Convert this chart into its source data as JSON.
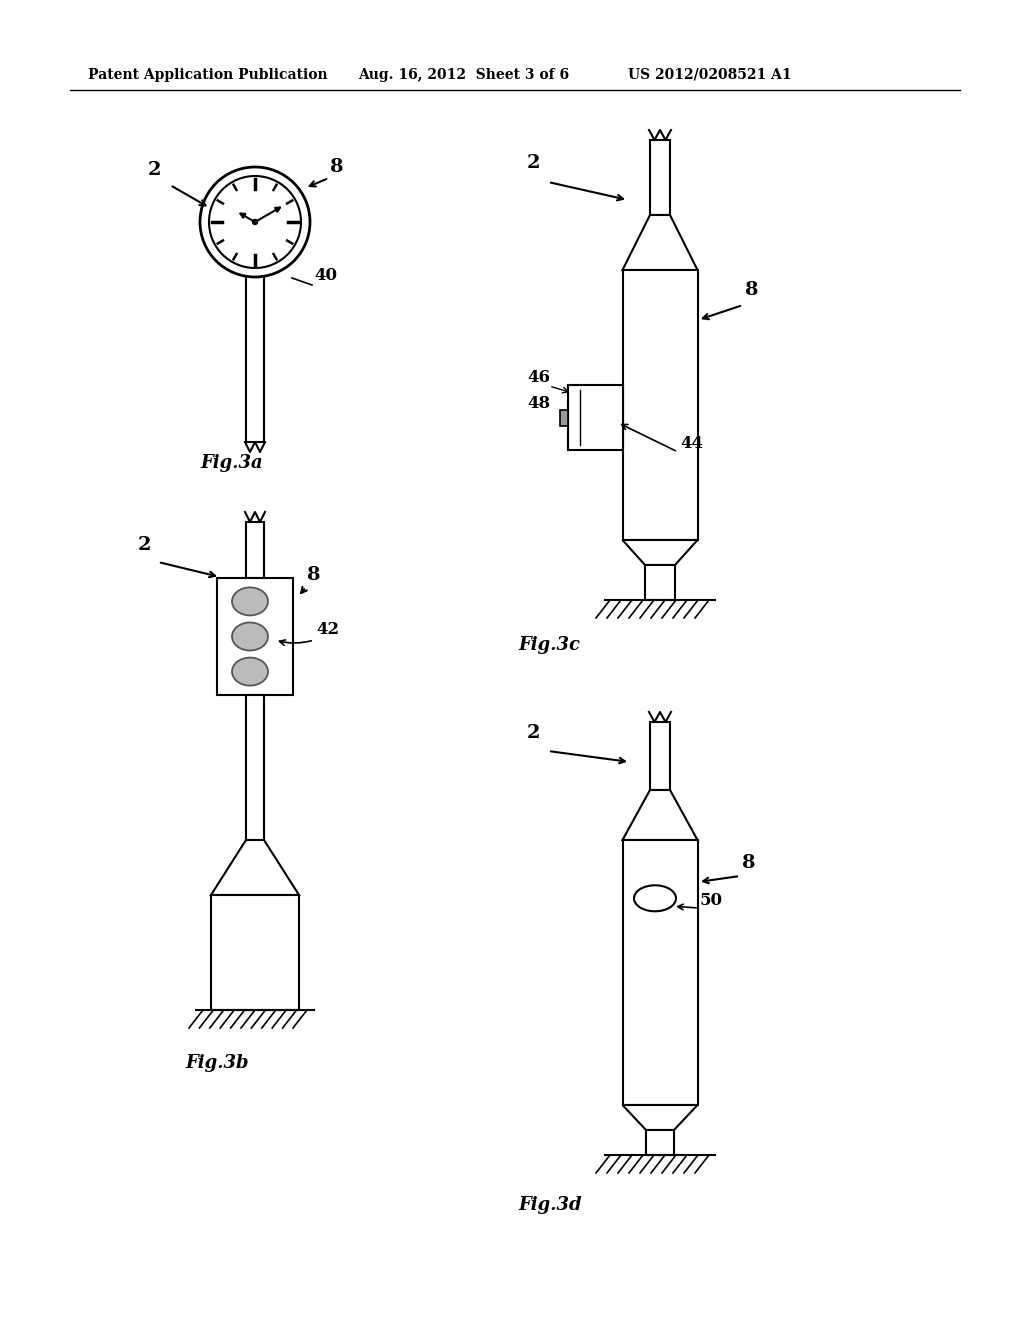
{
  "header_left": "Patent Application Publication",
  "header_mid": "Aug. 16, 2012  Sheet 3 of 6",
  "header_right": "US 2012/0208521 A1",
  "fig3a_label": "Fig.3a",
  "fig3b_label": "Fig.3b",
  "fig3c_label": "Fig.3c",
  "fig3d_label": "Fig.3d",
  "bg_color": "#ffffff",
  "line_color": "#000000"
}
